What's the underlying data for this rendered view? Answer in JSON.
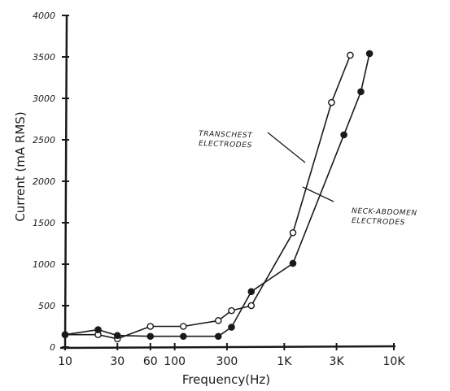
{
  "chart_data": {
    "type": "line",
    "xlabel": "Frequency(Hz)",
    "ylabel": "Current (mA RMS)",
    "x_scale": "log",
    "xlim": [
      10,
      10000
    ],
    "ylim": [
      0,
      4000
    ],
    "x_ticks": [
      {
        "value": 10,
        "label": "10"
      },
      {
        "value": 30,
        "label": "30"
      },
      {
        "value": 60,
        "label": "60"
      },
      {
        "value": 100,
        "label": "100"
      },
      {
        "value": 300,
        "label": "300"
      },
      {
        "value": 1000,
        "label": "1K"
      },
      {
        "value": 3000,
        "label": "3K"
      },
      {
        "value": 10000,
        "label": "10K"
      }
    ],
    "y_ticks": [
      {
        "value": 0,
        "label": "0"
      },
      {
        "value": 500,
        "label": "500"
      },
      {
        "value": 1000,
        "label": "1000"
      },
      {
        "value": 1500,
        "label": "1500"
      },
      {
        "value": 2000,
        "label": "2000"
      },
      {
        "value": 2500,
        "label": "2500"
      },
      {
        "value": 3000,
        "label": "3000"
      },
      {
        "value": 3500,
        "label": "3500"
      },
      {
        "value": 4000,
        "label": "4000"
      }
    ],
    "grid": false,
    "series": [
      {
        "name": "TRANSCHEST ELECTRODES",
        "marker": "open-circle",
        "x": [
          10,
          20,
          30,
          60,
          120,
          250,
          330,
          500,
          1200,
          2700,
          4000
        ],
        "y": [
          150,
          150,
          100,
          250,
          250,
          320,
          440,
          500,
          1380,
          2950,
          3520
        ]
      },
      {
        "name": "NECK-ABDOMEN ELECTRODES",
        "marker": "filled-circle",
        "x": [
          10,
          20,
          30,
          60,
          120,
          250,
          330,
          500,
          1200,
          3500,
          5000,
          6000
        ],
        "y": [
          150,
          210,
          140,
          130,
          130,
          130,
          240,
          670,
          1010,
          2560,
          3080,
          3540
        ]
      }
    ],
    "annotations": [
      {
        "lines": [
          "TRANSCHEST",
          "ELECTRODES"
        ],
        "series": 0
      },
      {
        "lines": [
          "NECK-ABDOMEN",
          "ELECTRODES"
        ],
        "series": 1
      }
    ]
  }
}
